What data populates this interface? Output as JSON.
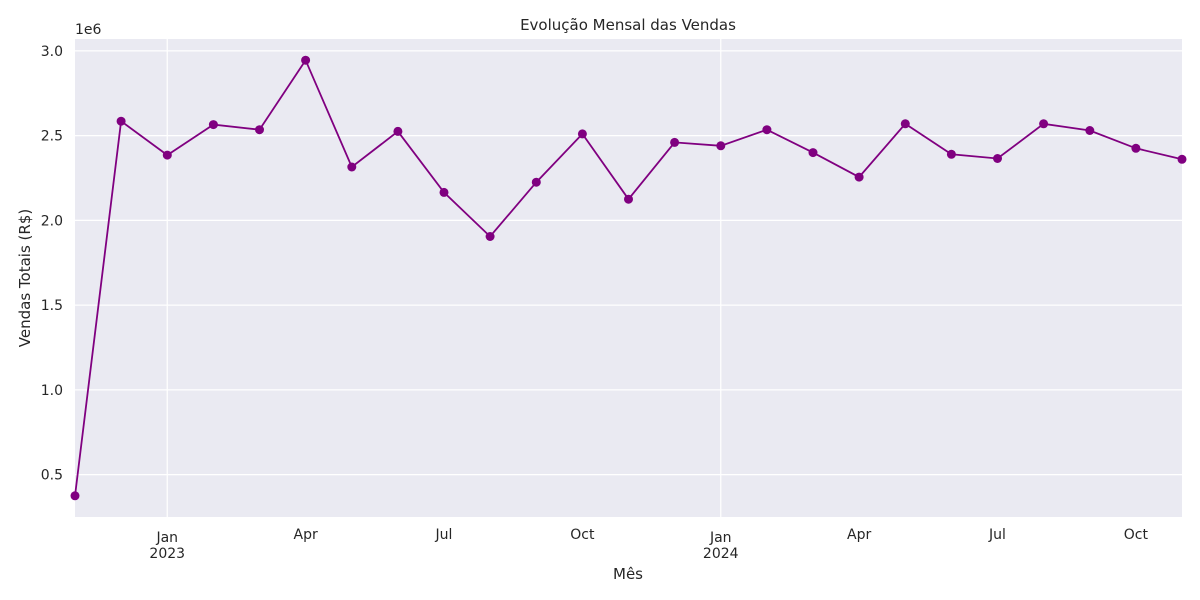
{
  "chart_data": {
    "type": "line",
    "title": "Evolução Mensal das Vendas",
    "xlabel": "Mês",
    "ylabel": "Vendas Totais (R$)",
    "y_offset_label": "1e6",
    "y_scale": 1000000,
    "ylim": [
      250000,
      3070000
    ],
    "xlim": [
      "2022-11-01",
      "2024-11-01"
    ],
    "grid": true,
    "background_color": "#eaeaf2",
    "grid_color": "#ffffff",
    "series_color": "#800080",
    "x": [
      "2022-11",
      "2022-12",
      "2023-01",
      "2023-02",
      "2023-03",
      "2023-04",
      "2023-05",
      "2023-06",
      "2023-07",
      "2023-08",
      "2023-09",
      "2023-10",
      "2023-11",
      "2023-12",
      "2024-01",
      "2024-02",
      "2024-03",
      "2024-04",
      "2024-05",
      "2024-06",
      "2024-07",
      "2024-08",
      "2024-09",
      "2024-10",
      "2024-11"
    ],
    "series": [
      {
        "values": [
          375000,
          2585000,
          2385000,
          2565000,
          2535000,
          2945000,
          2315000,
          2525000,
          2165000,
          1905000,
          2225000,
          2510000,
          2125000,
          2460000,
          2440000,
          2535000,
          2400000,
          2255000,
          2570000,
          2390000,
          2365000,
          2570000,
          2530000,
          2425000,
          2360000
        ]
      }
    ],
    "y_ticks": [
      {
        "value": 500000,
        "label": "0.5"
      },
      {
        "value": 1000000,
        "label": "1.0"
      },
      {
        "value": 1500000,
        "label": "1.5"
      },
      {
        "value": 2000000,
        "label": "2.0"
      },
      {
        "value": 2500000,
        "label": "2.5"
      },
      {
        "value": 3000000,
        "label": "3.0"
      }
    ],
    "x_major_ticks": [
      {
        "date": "2023-01",
        "label": "Jan",
        "sublabel": "2023"
      },
      {
        "date": "2024-01",
        "label": "Jan",
        "sublabel": "2024"
      }
    ],
    "x_minor_ticks": [
      {
        "date": "2023-04",
        "label": "Apr"
      },
      {
        "date": "2023-07",
        "label": "Jul"
      },
      {
        "date": "2023-10",
        "label": "Oct"
      },
      {
        "date": "2024-04",
        "label": "Apr"
      },
      {
        "date": "2024-07",
        "label": "Jul"
      },
      {
        "date": "2024-10",
        "label": "Oct"
      }
    ]
  }
}
